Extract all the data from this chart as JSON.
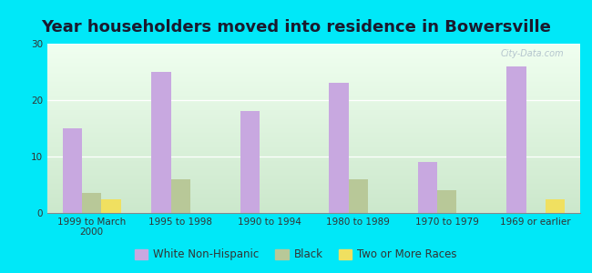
{
  "title": "Year householders moved into residence in Bowersville",
  "categories": [
    "1999 to March\n2000",
    "1995 to 1998",
    "1990 to 1994",
    "1980 to 1989",
    "1970 to 1979",
    "1969 or earlier"
  ],
  "white_non_hispanic": [
    15,
    25,
    18,
    23,
    9,
    26
  ],
  "black": [
    3.5,
    6,
    0,
    6,
    4,
    0
  ],
  "two_or_more_races": [
    2.5,
    0,
    0,
    0,
    0,
    2.5
  ],
  "colors": {
    "white_non_hispanic": "#c8a8e0",
    "black": "#b8c898",
    "two_or_more_races": "#f0e060"
  },
  "background_color": "#00e8f8",
  "grad_top": "#cce8cc",
  "grad_bottom": "#f0fff0",
  "ylim": [
    0,
    30
  ],
  "yticks": [
    0,
    10,
    20,
    30
  ],
  "bar_width": 0.22,
  "title_fontsize": 13,
  "tick_fontsize": 7.5,
  "legend_fontsize": 8.5,
  "watermark": "City-Data.com"
}
